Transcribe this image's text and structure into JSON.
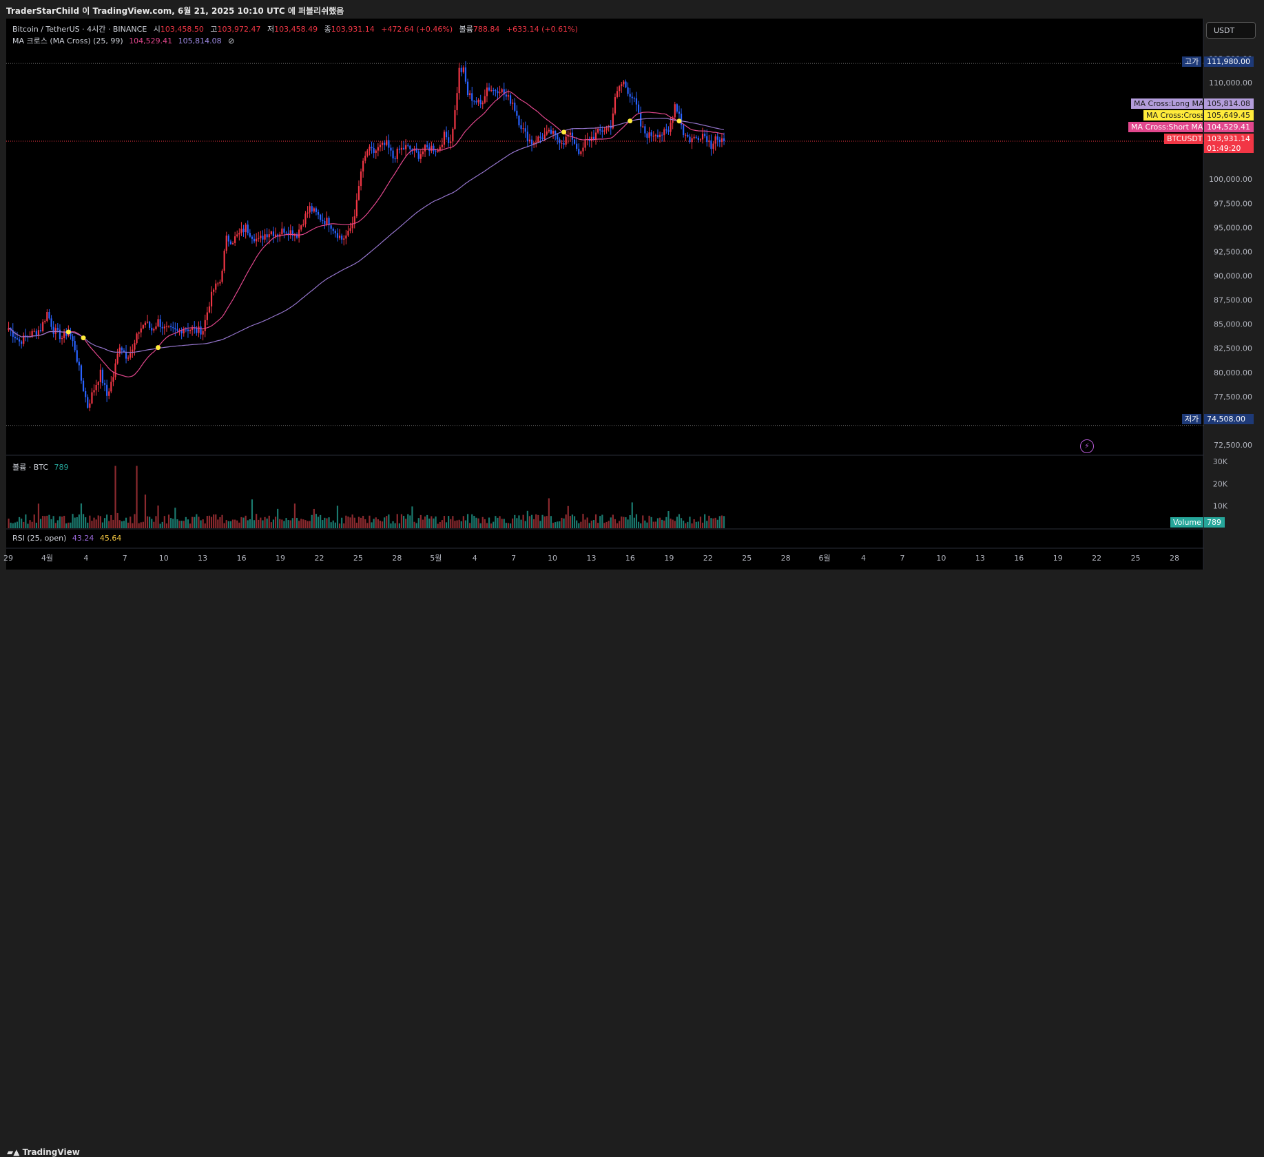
{
  "publish_line": "TraderStarChild 이 TradingView.com, 6월 21, 2025 10:10 UTC 에 퍼블리쉬했음",
  "legend": {
    "symbol": "Bitcoin / TetherUS · 4시간 · BINANCE",
    "open_label": "시",
    "open": "103,458.50",
    "high_label": "고",
    "high": "103,972.47",
    "low_label": "저",
    "low": "103,458.49",
    "close_label": "종",
    "close": "103,931.14",
    "change": "+472.64 (+0.46%)",
    "vol_label": "볼륨",
    "vol": "788.84",
    "vol_change": "+633.14 (+0.61%)",
    "ma_title": "MA 크로스 (MA Cross) (25, 99)",
    "ma_short": "104,529.41",
    "ma_long": "105,814.08",
    "volume_title": "볼륨 · BTC",
    "volume_value": "789",
    "rsi_title": "RSI (25, open)",
    "rsi_1": "43.24",
    "rsi_2": "45.64"
  },
  "currency_button": "USDT",
  "footer_logo": "TradingView",
  "colors": {
    "up": "#f23645",
    "down": "#2962ff",
    "ma_short": "#e2478d",
    "ma_long": "#9575cd",
    "cross": "#ffeb3b",
    "vol_up": "#8c2a2f",
    "vol_down": "#1b7a6f",
    "bg": "#000000"
  },
  "chart_data": {
    "type": "candlestick",
    "symbol": "BTCUSDT",
    "interval": "4시간",
    "y_scale": "linear",
    "ylim": [
      71500,
      113200
    ],
    "x_tick_labels": [
      "29",
      "4월",
      "4",
      "7",
      "10",
      "13",
      "16",
      "19",
      "22",
      "25",
      "28",
      "5월",
      "4",
      "7",
      "10",
      "13",
      "16",
      "19",
      "22",
      "25",
      "28",
      "6월",
      "4",
      "7",
      "10",
      "13",
      "16",
      "19",
      "22",
      "25",
      "28"
    ],
    "y_ticks": [
      72500,
      75000,
      77500,
      80000,
      82500,
      85000,
      87500,
      90000,
      92500,
      95000,
      97500,
      100000,
      102500,
      105000,
      107500,
      110000,
      112500
    ],
    "y_tick_labels": [
      "72,500.00",
      "75,000.00",
      "77,500.00",
      "80,000.00",
      "82,500.00",
      "85,000.00",
      "87,500.00",
      "90,000.00",
      "92,500.00",
      "95,000.00",
      "97,500.00",
      "100,000.00",
      "",
      "",
      "",
      "110,000.00",
      "112,500.00"
    ],
    "hi_label": "고가",
    "hi_value": 111980.0,
    "hi_value_text": "111,980.00",
    "lo_label": "저가",
    "lo_value": 74508.0,
    "lo_value_text": "74,508.00",
    "price_path_anchors": [
      [
        0,
        84600
      ],
      [
        5,
        83200
      ],
      [
        10,
        83900
      ],
      [
        15,
        84500
      ],
      [
        18,
        86200
      ],
      [
        21,
        84400
      ],
      [
        25,
        83600
      ],
      [
        28,
        84300
      ],
      [
        31,
        82500
      ],
      [
        34,
        79200
      ],
      [
        37,
        76500
      ],
      [
        40,
        78300
      ],
      [
        43,
        79900
      ],
      [
        46,
        77600
      ],
      [
        49,
        79600
      ],
      [
        52,
        82900
      ],
      [
        55,
        81800
      ],
      [
        58,
        82200
      ],
      [
        61,
        84300
      ],
      [
        64,
        85200
      ],
      [
        67,
        84400
      ],
      [
        70,
        85300
      ],
      [
        73,
        84500
      ],
      [
        76,
        84300
      ],
      [
        79,
        84200
      ],
      [
        82,
        84600
      ],
      [
        85,
        84500
      ],
      [
        88,
        84300
      ],
      [
        91,
        84400
      ],
      [
        94,
        87200
      ],
      [
        96,
        88600
      ],
      [
        99,
        89400
      ],
      [
        102,
        93800
      ],
      [
        105,
        93700
      ],
      [
        108,
        94300
      ],
      [
        111,
        95000
      ],
      [
        114,
        94200
      ],
      [
        117,
        93600
      ],
      [
        120,
        94300
      ],
      [
        123,
        94600
      ],
      [
        126,
        94300
      ],
      [
        129,
        94800
      ],
      [
        132,
        94600
      ],
      [
        135,
        94300
      ],
      [
        138,
        95800
      ],
      [
        141,
        97000
      ],
      [
        144,
        96400
      ],
      [
        147,
        95800
      ],
      [
        150,
        95600
      ],
      [
        153,
        94600
      ],
      [
        156,
        93800
      ],
      [
        159,
        94300
      ],
      [
        161,
        95500
      ],
      [
        163,
        97500
      ],
      [
        165,
        100800
      ],
      [
        168,
        103000
      ],
      [
        171,
        102800
      ],
      [
        174,
        103300
      ],
      [
        177,
        103600
      ],
      [
        180,
        102200
      ],
      [
        183,
        103000
      ],
      [
        186,
        103300
      ],
      [
        189,
        103000
      ],
      [
        192,
        102500
      ],
      [
        195,
        103100
      ],
      [
        198,
        103300
      ],
      [
        201,
        103000
      ],
      [
        204,
        104500
      ],
      [
        207,
        104000
      ],
      [
        209,
        107000
      ],
      [
        211,
        111300
      ],
      [
        213,
        111200
      ],
      [
        215,
        108800
      ],
      [
        218,
        108200
      ],
      [
        221,
        107700
      ],
      [
        224,
        109500
      ],
      [
        227,
        109200
      ],
      [
        230,
        109400
      ],
      [
        233,
        108500
      ],
      [
        236,
        108000
      ],
      [
        239,
        106000
      ],
      [
        242,
        104600
      ],
      [
        245,
        103800
      ],
      [
        248,
        104200
      ],
      [
        251,
        104500
      ],
      [
        254,
        104800
      ],
      [
        257,
        104200
      ],
      [
        260,
        103900
      ],
      [
        262,
        104500
      ],
      [
        264,
        104300
      ],
      [
        266,
        103300
      ],
      [
        268,
        102500
      ],
      [
        270,
        103800
      ],
      [
        273,
        104300
      ],
      [
        276,
        104800
      ],
      [
        279,
        105200
      ],
      [
        282,
        105600
      ],
      [
        284,
        108200
      ],
      [
        286,
        109600
      ],
      [
        288,
        110000
      ],
      [
        290,
        109200
      ],
      [
        292,
        108500
      ],
      [
        294,
        107500
      ],
      [
        296,
        105500
      ],
      [
        298,
        104800
      ],
      [
        300,
        104500
      ],
      [
        303,
        104800
      ],
      [
        306,
        104700
      ],
      [
        309,
        104800
      ],
      [
        312,
        107800
      ],
      [
        314,
        106800
      ],
      [
        316,
        104800
      ],
      [
        319,
        104100
      ],
      [
        322,
        104300
      ],
      [
        325,
        104700
      ],
      [
        327,
        104300
      ],
      [
        329,
        103500
      ],
      [
        331,
        104600
      ],
      [
        333,
        103700
      ],
      [
        335,
        103931.14
      ]
    ],
    "candle_count": 336,
    "ma_short_period": 25,
    "ma_long_period": 99,
    "last_values": {
      "close": 103931.14,
      "ma_short": 104529.41,
      "ma_long": 105814.08,
      "cross": 105649.45
    },
    "price_labels": [
      {
        "name": "MA Cross:Long MA",
        "value": 105814.08,
        "text": "105,814.08"
      },
      {
        "name": "MA Cross:Cross",
        "value": 105649.45,
        "text": "105,649.45"
      },
      {
        "name": "MA Cross:Short MA",
        "value": 104529.41,
        "text": "104,529.41"
      },
      {
        "name": "BTCUSDT",
        "value": 103931.14,
        "text": "103,931.14",
        "countdown": "01:49:20"
      }
    ],
    "volume": {
      "ylim": [
        0,
        30000
      ],
      "y_ticks": [
        10000,
        20000,
        30000
      ],
      "y_tick_labels": [
        "10K",
        "20K",
        "30K"
      ],
      "label": "Volume",
      "last": 789
    }
  }
}
